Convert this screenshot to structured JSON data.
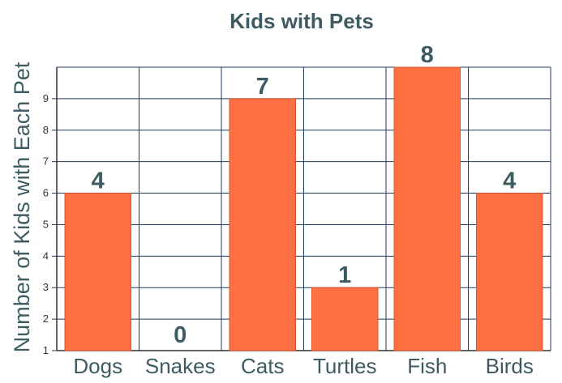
{
  "chart_data": {
    "type": "bar",
    "title": "Kids with Pets",
    "ylabel": "Number of Kids with Each Pet",
    "xlabel": "",
    "categories": [
      "Dogs",
      "Snakes",
      "Cats",
      "Turtles",
      "Fish",
      "Birds"
    ],
    "values": [
      4,
      0,
      7,
      1,
      8,
      4
    ],
    "data_labels": [
      "4",
      "0",
      "7",
      "1",
      "8",
      "4"
    ],
    "y_ticks": [
      "1",
      "2",
      "3",
      "4",
      "5",
      "6",
      "7",
      "8",
      "9"
    ],
    "ylim": [
      0,
      9
    ],
    "grid": true,
    "colors": {
      "bar": "#FF7043",
      "bar_edge": "#D9532A",
      "grid": "#1F3A5F",
      "text": "#3E5B61"
    }
  }
}
